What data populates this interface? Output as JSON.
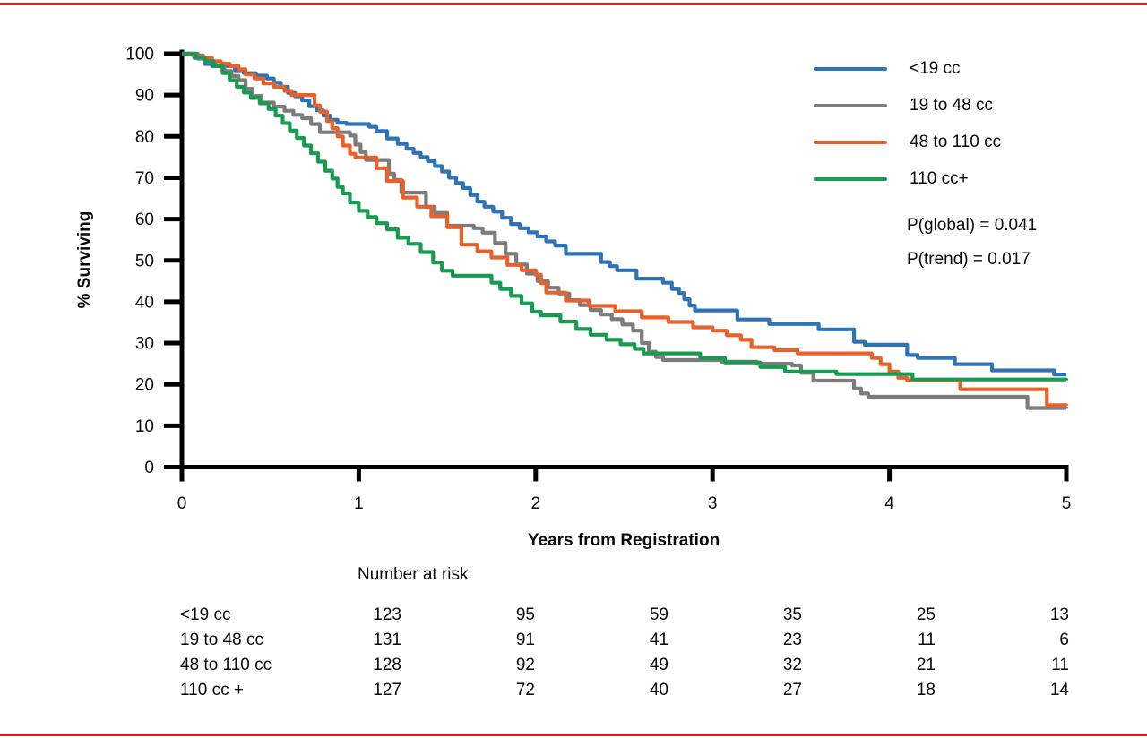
{
  "figure": {
    "background_color": "#ffffff",
    "border_rule_color": "#d02330",
    "text_color": "#0a0a0a",
    "axis_color": "#000000"
  },
  "chart_data": {
    "type": "line",
    "subtype": "kaplan-meier-step",
    "title": "",
    "xlabel": "Years from Registration",
    "ylabel": "% Surviving",
    "xlim": [
      0,
      5
    ],
    "ylim": [
      0,
      100
    ],
    "x_ticks": [
      0,
      1,
      2,
      3,
      4,
      5
    ],
    "y_ticks": [
      0,
      10,
      20,
      30,
      40,
      50,
      60,
      70,
      80,
      90,
      100
    ],
    "grid": false,
    "legend_position": "top-right",
    "annotations": [
      "P(global) = 0.041",
      "P(trend) = 0.017"
    ],
    "series": [
      {
        "name": "<19 cc",
        "color": "#2e73b5",
        "steps": [
          [
            0,
            100
          ],
          [
            0.07,
            99
          ],
          [
            0.13,
            97.5
          ],
          [
            0.17,
            97
          ],
          [
            0.3,
            96
          ],
          [
            0.35,
            95.3
          ],
          [
            0.42,
            94.7
          ],
          [
            0.48,
            94
          ],
          [
            0.52,
            93
          ],
          [
            0.56,
            92
          ],
          [
            0.6,
            90.5
          ],
          [
            0.64,
            89.7
          ],
          [
            0.68,
            88.7
          ],
          [
            0.72,
            87.3
          ],
          [
            0.76,
            86.3
          ],
          [
            0.8,
            85
          ],
          [
            0.84,
            84
          ],
          [
            0.88,
            83.3
          ],
          [
            0.93,
            83
          ],
          [
            1.06,
            82.3
          ],
          [
            1.1,
            81.3
          ],
          [
            1.16,
            79.5
          ],
          [
            1.22,
            78.2
          ],
          [
            1.27,
            77
          ],
          [
            1.31,
            76
          ],
          [
            1.35,
            75
          ],
          [
            1.39,
            74
          ],
          [
            1.43,
            72.8
          ],
          [
            1.47,
            71.5
          ],
          [
            1.51,
            70
          ],
          [
            1.55,
            68.7
          ],
          [
            1.59,
            67.5
          ],
          [
            1.63,
            65.8
          ],
          [
            1.67,
            64.2
          ],
          [
            1.71,
            63
          ],
          [
            1.76,
            61.8
          ],
          [
            1.81,
            60.3
          ],
          [
            1.86,
            58.8
          ],
          [
            1.91,
            57.8
          ],
          [
            1.96,
            56.8
          ],
          [
            2.01,
            55.8
          ],
          [
            2.06,
            54.6
          ],
          [
            2.11,
            53.6
          ],
          [
            2.17,
            51.6
          ],
          [
            2.37,
            49.6
          ],
          [
            2.42,
            48.6
          ],
          [
            2.46,
            47.6
          ],
          [
            2.57,
            45.6
          ],
          [
            2.72,
            44.6
          ],
          [
            2.77,
            43.1
          ],
          [
            2.81,
            42.1
          ],
          [
            2.84,
            40.6
          ],
          [
            2.87,
            39.1
          ],
          [
            2.9,
            37.9
          ],
          [
            3.14,
            35.7
          ],
          [
            3.32,
            34.6
          ],
          [
            3.6,
            33.3
          ],
          [
            3.8,
            30.3
          ],
          [
            3.86,
            29.6
          ],
          [
            4.1,
            27.1
          ],
          [
            4.16,
            26.4
          ],
          [
            4.37,
            24.9
          ],
          [
            4.58,
            23.4
          ],
          [
            4.93,
            22.4
          ],
          [
            5,
            22.4
          ]
        ]
      },
      {
        "name": "19 to 48 cc",
        "color": "#7c7c7c",
        "steps": [
          [
            0,
            100
          ],
          [
            0.09,
            98.8
          ],
          [
            0.14,
            98
          ],
          [
            0.19,
            97
          ],
          [
            0.24,
            95.8
          ],
          [
            0.28,
            94.6
          ],
          [
            0.32,
            93.6
          ],
          [
            0.36,
            91.5
          ],
          [
            0.4,
            89.8
          ],
          [
            0.45,
            88.2
          ],
          [
            0.52,
            87.2
          ],
          [
            0.58,
            86.2
          ],
          [
            0.63,
            85.2
          ],
          [
            0.68,
            84.4
          ],
          [
            0.73,
            83
          ],
          [
            0.78,
            81
          ],
          [
            0.95,
            80.2
          ],
          [
            0.98,
            78
          ],
          [
            1.01,
            76.2
          ],
          [
            1.04,
            74.3
          ],
          [
            1.17,
            71
          ],
          [
            1.2,
            69.5
          ],
          [
            1.24,
            66.4
          ],
          [
            1.38,
            63
          ],
          [
            1.43,
            61.5
          ],
          [
            1.5,
            58.4
          ],
          [
            1.65,
            57.8
          ],
          [
            1.7,
            56.7
          ],
          [
            1.77,
            54.2
          ],
          [
            1.83,
            51.6
          ],
          [
            1.89,
            49
          ],
          [
            1.95,
            46.8
          ],
          [
            2.01,
            45
          ],
          [
            2.07,
            43.4
          ],
          [
            2.13,
            42
          ],
          [
            2.19,
            40.4
          ],
          [
            2.25,
            39.2
          ],
          [
            2.31,
            38
          ],
          [
            2.37,
            36.9
          ],
          [
            2.43,
            35.8
          ],
          [
            2.49,
            34.5
          ],
          [
            2.55,
            33
          ],
          [
            2.6,
            30
          ],
          [
            2.64,
            27.9
          ],
          [
            2.68,
            26.6
          ],
          [
            2.72,
            25.9
          ],
          [
            3.05,
            25.5
          ],
          [
            3.25,
            25
          ],
          [
            3.45,
            24.6
          ],
          [
            3.5,
            22.8
          ],
          [
            3.57,
            20.9
          ],
          [
            3.8,
            19
          ],
          [
            3.84,
            17.8
          ],
          [
            3.88,
            17
          ],
          [
            4.78,
            14.3
          ],
          [
            5,
            14.1
          ]
        ]
      },
      {
        "name": "48 to 110 cc",
        "color": "#e7612d",
        "steps": [
          [
            0,
            100
          ],
          [
            0.06,
            99.6
          ],
          [
            0.12,
            99
          ],
          [
            0.17,
            98.2
          ],
          [
            0.22,
            97.6
          ],
          [
            0.27,
            97
          ],
          [
            0.32,
            96.2
          ],
          [
            0.36,
            95
          ],
          [
            0.41,
            94
          ],
          [
            0.46,
            92.8
          ],
          [
            0.52,
            92
          ],
          [
            0.58,
            91
          ],
          [
            0.62,
            90
          ],
          [
            0.75,
            87.5
          ],
          [
            0.78,
            86
          ],
          [
            0.82,
            83.7
          ],
          [
            0.85,
            82
          ],
          [
            0.88,
            80
          ],
          [
            0.91,
            77.8
          ],
          [
            0.95,
            75.8
          ],
          [
            0.98,
            74.9
          ],
          [
            1.1,
            72.3
          ],
          [
            1.16,
            69.2
          ],
          [
            1.25,
            65.2
          ],
          [
            1.33,
            63
          ],
          [
            1.41,
            60.7
          ],
          [
            1.5,
            58
          ],
          [
            1.58,
            53.8
          ],
          [
            1.67,
            52.2
          ],
          [
            1.75,
            50.7
          ],
          [
            1.84,
            48.9
          ],
          [
            1.92,
            47.6
          ],
          [
            2,
            46.5
          ],
          [
            2.03,
            44.5
          ],
          [
            2.06,
            42.2
          ],
          [
            2.17,
            40.3
          ],
          [
            2.3,
            39
          ],
          [
            2.45,
            37.7
          ],
          [
            2.6,
            36.2
          ],
          [
            2.75,
            35.1
          ],
          [
            2.89,
            33.8
          ],
          [
            3,
            33
          ],
          [
            3.08,
            31.9
          ],
          [
            3.16,
            30.8
          ],
          [
            3.22,
            29
          ],
          [
            3.35,
            28.3
          ],
          [
            3.48,
            27.5
          ],
          [
            3.9,
            26.4
          ],
          [
            3.95,
            24.9
          ],
          [
            4,
            23.1
          ],
          [
            4.05,
            21.6
          ],
          [
            4.1,
            21
          ],
          [
            4.4,
            18.8
          ],
          [
            4.89,
            15
          ],
          [
            5,
            14.9
          ]
        ]
      },
      {
        "name": "110 cc+",
        "color": "#189b50",
        "steps": [
          [
            0,
            100
          ],
          [
            0.08,
            99.2
          ],
          [
            0.13,
            98.2
          ],
          [
            0.18,
            97
          ],
          [
            0.23,
            95.3
          ],
          [
            0.27,
            93.6
          ],
          [
            0.31,
            92
          ],
          [
            0.35,
            90.6
          ],
          [
            0.39,
            89.3
          ],
          [
            0.44,
            88
          ],
          [
            0.49,
            86.6
          ],
          [
            0.53,
            85
          ],
          [
            0.57,
            83.2
          ],
          [
            0.61,
            81.4
          ],
          [
            0.65,
            79.6
          ],
          [
            0.69,
            77.8
          ],
          [
            0.73,
            75.9
          ],
          [
            0.77,
            73.9
          ],
          [
            0.81,
            71.7
          ],
          [
            0.85,
            69.8
          ],
          [
            0.88,
            67.8
          ],
          [
            0.91,
            66.2
          ],
          [
            0.95,
            64
          ],
          [
            1,
            62
          ],
          [
            1.05,
            60.5
          ],
          [
            1.1,
            59
          ],
          [
            1.16,
            57.5
          ],
          [
            1.22,
            55.5
          ],
          [
            1.28,
            54
          ],
          [
            1.35,
            52
          ],
          [
            1.42,
            49.5
          ],
          [
            1.47,
            47.5
          ],
          [
            1.53,
            46.3
          ],
          [
            1.75,
            44.6
          ],
          [
            1.8,
            43.1
          ],
          [
            1.86,
            41.4
          ],
          [
            1.92,
            39.6
          ],
          [
            1.98,
            37.6
          ],
          [
            2.03,
            36.7
          ],
          [
            2.14,
            35.2
          ],
          [
            2.23,
            33.4
          ],
          [
            2.31,
            32
          ],
          [
            2.4,
            30.8
          ],
          [
            2.48,
            29.7
          ],
          [
            2.56,
            28.6
          ],
          [
            2.61,
            27.5
          ],
          [
            2.93,
            26.4
          ],
          [
            3.07,
            25.3
          ],
          [
            3.27,
            24.2
          ],
          [
            3.41,
            23.1
          ],
          [
            3.7,
            22.5
          ],
          [
            4.13,
            21.2
          ],
          [
            5,
            21
          ]
        ]
      }
    ],
    "number_at_risk": {
      "header": "Number at risk",
      "rows": [
        {
          "label": "<19 cc",
          "values": [
            "123",
            "95",
            "59",
            "35",
            "25",
            "13"
          ]
        },
        {
          "label": "19 to 48 cc",
          "values": [
            "131",
            "91",
            "41",
            "23",
            "11",
            "6"
          ]
        },
        {
          "label": "48 to 110 cc",
          "values": [
            "128",
            "92",
            "49",
            "32",
            "21",
            "11"
          ]
        },
        {
          "label": "110 cc +",
          "values": [
            "127",
            "72",
            "40",
            "27",
            "18",
            "14"
          ]
        }
      ]
    }
  },
  "legend": {
    "items": [
      {
        "label": "<19 cc",
        "color": "#2e73b5"
      },
      {
        "label": "19 to 48 cc",
        "color": "#7c7c7c"
      },
      {
        "label": "48 to 110 cc",
        "color": "#e7612d"
      },
      {
        "label": "110 cc+",
        "color": "#189b50"
      }
    ],
    "p_global": "P(global) = 0.041",
    "p_trend": "P(trend) = 0.017"
  }
}
